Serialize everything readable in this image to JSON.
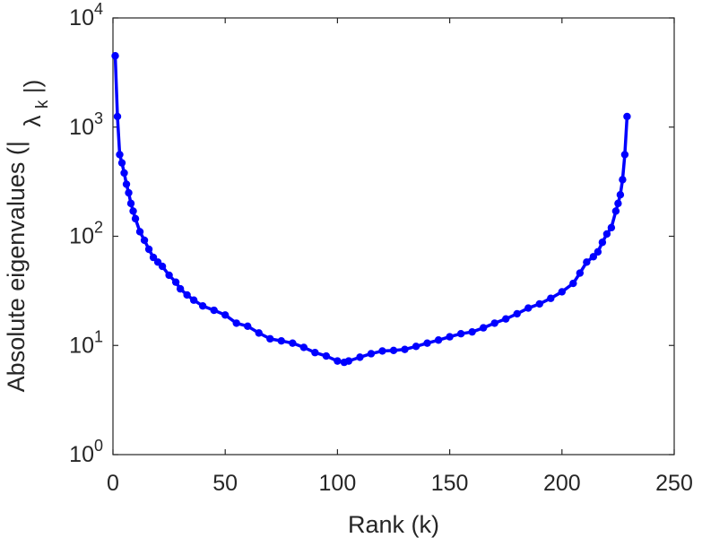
{
  "chart_data": {
    "type": "line",
    "xlabel": "Rank (k)",
    "ylabel_prefix": "Absolute eigenvalues (|",
    "ylabel_symbol": "λ",
    "ylabel_subscript": "k",
    "ylabel_suffix": "|)",
    "xlim": [
      0,
      250
    ],
    "ylim": [
      1,
      10000
    ],
    "yscale": "log",
    "grid": false,
    "legend": "none",
    "x_ticks": [
      "0",
      "50",
      "100",
      "150",
      "200",
      "250"
    ],
    "y_ticks": [
      {
        "base": "10",
        "exp": "0"
      },
      {
        "base": "10",
        "exp": "1"
      },
      {
        "base": "10",
        "exp": "2"
      },
      {
        "base": "10",
        "exp": "3"
      },
      {
        "base": "10",
        "exp": "4"
      }
    ],
    "series": [
      {
        "color": "#0000ff",
        "marker": "circle",
        "x": [
          1,
          2,
          3,
          4,
          5,
          6,
          7,
          8,
          9,
          10,
          12,
          14,
          16,
          18,
          20,
          22,
          25,
          28,
          30,
          33,
          36,
          40,
          45,
          50,
          55,
          60,
          65,
          70,
          75,
          80,
          85,
          90,
          95,
          100,
          103,
          105,
          110,
          115,
          120,
          125,
          130,
          135,
          140,
          145,
          150,
          155,
          160,
          165,
          170,
          175,
          180,
          185,
          190,
          195,
          200,
          205,
          208,
          211,
          214,
          216,
          218,
          220,
          222,
          224,
          225,
          226,
          227,
          228,
          229
        ],
        "y": [
          4500,
          1250,
          560,
          470,
          380,
          300,
          250,
          200,
          170,
          145,
          110,
          92,
          76,
          64,
          58,
          53,
          44,
          38,
          33,
          29,
          26,
          23,
          21,
          19,
          16,
          15,
          13,
          11.5,
          11,
          10.5,
          9.6,
          8.6,
          8.0,
          7.2,
          7.0,
          7.2,
          7.8,
          8.4,
          8.9,
          9.0,
          9.2,
          9.8,
          10.5,
          11.2,
          12.0,
          12.8,
          13.3,
          14.5,
          16.0,
          17.5,
          19.5,
          22.0,
          24.0,
          27.0,
          31.0,
          37.0,
          46.0,
          58.0,
          65.0,
          72.0,
          88.0,
          105.0,
          120.0,
          170.0,
          200.0,
          240.0,
          330.0,
          560.0,
          1250.0
        ]
      }
    ]
  }
}
